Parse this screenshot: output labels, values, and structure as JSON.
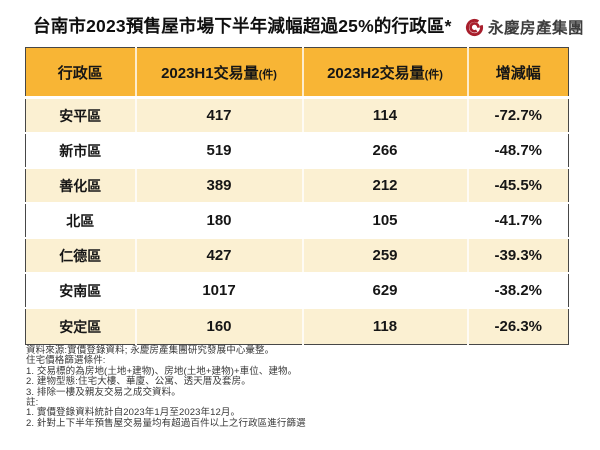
{
  "page": {
    "title": "台南市2023預售屋市場下半年減幅超過25%的行政區*",
    "brand": "永慶房產集團"
  },
  "colors": {
    "header_bg": "#F8B535",
    "row_stripe_bg": "#FBF0D2",
    "row_plain_bg": "#FFFFFF",
    "table_border": "#474747",
    "logo_red": "#A81E2C",
    "text_dark": "#161616",
    "footer_text": "#383838"
  },
  "table": {
    "columns": [
      {
        "label": "行政區",
        "unit": ""
      },
      {
        "label": "2023H1交易量",
        "unit": "(件)"
      },
      {
        "label": "2023H2交易量",
        "unit": "(件)"
      },
      {
        "label": "增減幅",
        "unit": ""
      }
    ],
    "rows": [
      {
        "district": "安平區",
        "h1": "417",
        "h2": "114",
        "change": "-72.7%"
      },
      {
        "district": "新市區",
        "h1": "519",
        "h2": "266",
        "change": "-48.7%"
      },
      {
        "district": "善化區",
        "h1": "389",
        "h2": "212",
        "change": "-45.5%"
      },
      {
        "district": "北區",
        "h1": "180",
        "h2": "105",
        "change": "-41.7%"
      },
      {
        "district": "仁德區",
        "h1": "427",
        "h2": "259",
        "change": "-39.3%"
      },
      {
        "district": "安南區",
        "h1": "1017",
        "h2": "629",
        "change": "-38.2%"
      },
      {
        "district": "安定區",
        "h1": "160",
        "h2": "118",
        "change": "-26.3%"
      }
    ]
  },
  "footer": {
    "lines": [
      "資料來源:實價登錄資料; 永慶房產集團研究發展中心彙整。",
      "住宅價格篩選條件:",
      "1. 交易標的為房地(土地+建物)、房地(土地+建物)+車位、建物。",
      "2. 建物型態:住宅大樓、華廈、公寓、透天厝及套房。",
      "3. 排除一樓及親友交易之成交資料。",
      "註:",
      "1. 實價登錄資料統計自2023年1月至2023年12月。",
      "2. 針對上下半年預售屋交易量均有超過百件以上之行政區進行篩選"
    ]
  },
  "chart_data": {
    "type": "table",
    "title": "台南市2023預售屋市場下半年減幅超過25%的行政區*",
    "columns": [
      "行政區",
      "2023H1交易量(件)",
      "2023H2交易量(件)",
      "增減幅"
    ],
    "rows": [
      [
        "安平區",
        417,
        114,
        "-72.7%"
      ],
      [
        "新市區",
        519,
        266,
        "-48.7%"
      ],
      [
        "善化區",
        389,
        212,
        "-45.5%"
      ],
      [
        "北區",
        180,
        105,
        "-41.7%"
      ],
      [
        "仁德區",
        427,
        259,
        "-39.3%"
      ],
      [
        "安南區",
        1017,
        629,
        "-38.2%"
      ],
      [
        "安定區",
        160,
        118,
        "-26.3%"
      ]
    ],
    "source_note": "資料來源:實價登錄資料; 永慶房產集團研究發展中心彙整。"
  }
}
